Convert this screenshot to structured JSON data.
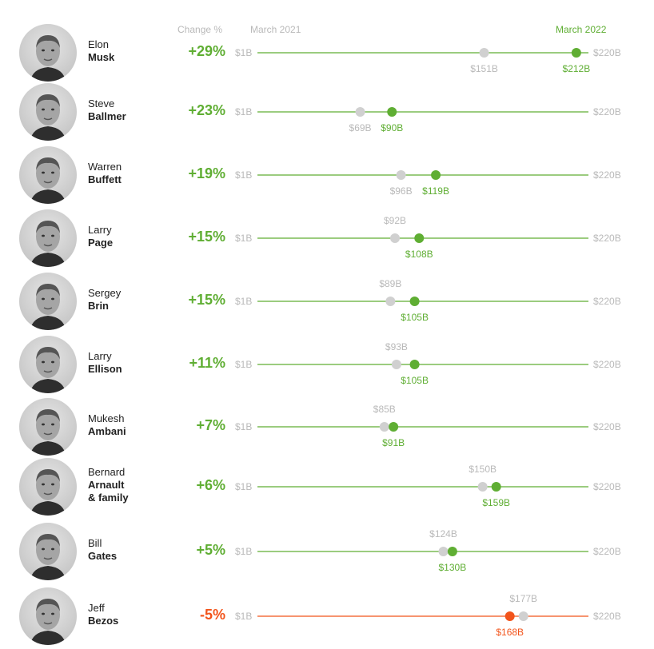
{
  "headers": {
    "change": "Change %",
    "from": "March 2021",
    "to": "March 2022"
  },
  "axis": {
    "min_label": "$1B",
    "max_label": "$220B",
    "min": 1,
    "max": 220
  },
  "colors": {
    "gain": "#5fae33",
    "loss": "#f2541b",
    "prior": "#d0d0d0",
    "axis_text": "#b9b9b9"
  },
  "chart_data": {
    "type": "dumbbell",
    "x_range": [
      1,
      220
    ],
    "unit": "$B",
    "rows": [
      {
        "first": "Elon",
        "last": "Musk",
        "change": "+29%",
        "v2021": 151,
        "v2022": 212,
        "l2021": "$151B",
        "l2022": "$212B",
        "prior_label_pos": "below"
      },
      {
        "first": "Steve",
        "last": "Ballmer",
        "change": "+23%",
        "v2021": 69,
        "v2022": 90,
        "l2021": "$69B",
        "l2022": "$90B",
        "prior_label_pos": "below"
      },
      {
        "first": "Warren",
        "last": "Buffett",
        "change": "+19%",
        "v2021": 96,
        "v2022": 119,
        "l2021": "$96B",
        "l2022": "$119B",
        "prior_label_pos": "below"
      },
      {
        "first": "Larry",
        "last": "Page",
        "change": "+15%",
        "v2021": 92,
        "v2022": 108,
        "l2021": "$92B",
        "l2022": "$108B",
        "prior_label_pos": "above"
      },
      {
        "first": "Sergey",
        "last": "Brin",
        "change": "+15%",
        "v2021": 89,
        "v2022": 105,
        "l2021": "$89B",
        "l2022": "$105B",
        "prior_label_pos": "above"
      },
      {
        "first": "Larry",
        "last": "Ellison",
        "change": "+11%",
        "v2021": 93,
        "v2022": 105,
        "l2021": "$93B",
        "l2022": "$105B",
        "prior_label_pos": "above"
      },
      {
        "first": "Mukesh",
        "last": "Ambani",
        "change": "+7%",
        "v2021": 85,
        "v2022": 91,
        "l2021": "$85B",
        "l2022": "$91B",
        "prior_label_pos": "above"
      },
      {
        "first": "Bernard",
        "last": "Arnault\n& family",
        "change": "+6%",
        "v2021": 150,
        "v2022": 159,
        "l2021": "$150B",
        "l2022": "$159B",
        "prior_label_pos": "above"
      },
      {
        "first": "Bill",
        "last": "Gates",
        "change": "+5%",
        "v2021": 124,
        "v2022": 130,
        "l2021": "$124B",
        "l2022": "$130B",
        "prior_label_pos": "above"
      },
      {
        "first": "Jeff",
        "last": "Bezos",
        "change": "-5%",
        "v2021": 177,
        "v2022": 168,
        "l2021": "$177B",
        "l2022": "$168B",
        "prior_label_pos": "above"
      }
    ]
  }
}
